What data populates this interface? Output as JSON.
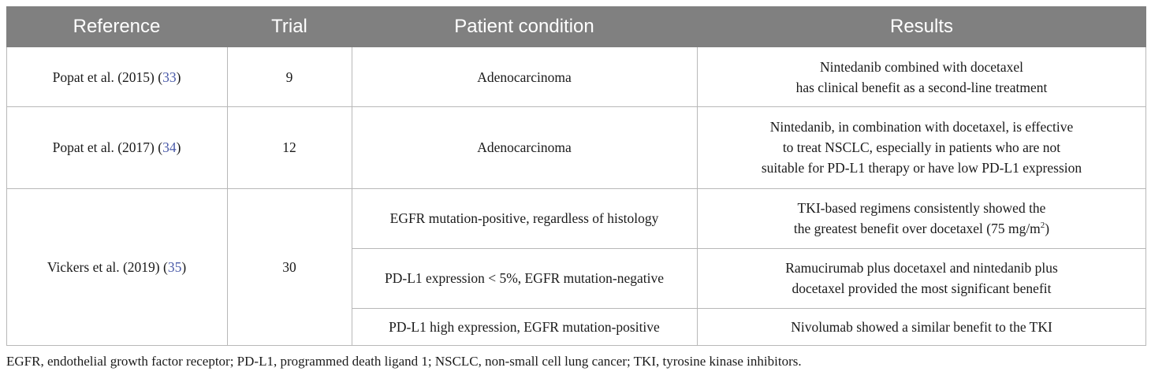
{
  "header": {
    "columns": [
      "Reference",
      "Trial",
      "Patient condition",
      "Results"
    ]
  },
  "table": {
    "rows": [
      {
        "reference": [
          "Popat et al. (2015) (",
          "33",
          ")"
        ],
        "trial": "9",
        "conditions": [
          {
            "condition": "Adenocarcinoma",
            "results": [
              [
                "Nintedanib combined with docetaxel"
              ],
              [
                "has clinical benefit as a second-line treatment"
              ]
            ]
          }
        ]
      },
      {
        "reference": [
          "Popat et al. (2017) (",
          "34",
          ")"
        ],
        "trial": "12",
        "conditions": [
          {
            "condition": "Adenocarcinoma",
            "results": [
              [
                "Nintedanib, in combination with docetaxel, is effective"
              ],
              [
                "to treat NSCLC, especially in patients who are not"
              ],
              [
                "suitable for PD-L1 therapy or have low PD-L1 expression"
              ]
            ]
          }
        ]
      },
      {
        "reference": [
          "Vickers et al. (2019) (",
          "35",
          ")"
        ],
        "trial": "30",
        "conditions": [
          {
            "condition": "EGFR mutation-positive, regardless of histology",
            "results": [
              [
                "TKI-based regimens consistently showed the"
              ],
              [
                "the greatest benefit over docetaxel (75 mg/m",
                "2",
                ")"
              ]
            ]
          },
          {
            "condition": "PD-L1 expression < 5%, EGFR mutation-negative",
            "results": [
              [
                "Ramucirumab plus docetaxel and nintedanib plus"
              ],
              [
                "docetaxel provided the most significant benefit"
              ]
            ]
          },
          {
            "condition": "PD-L1 high expression, EGFR mutation-positive",
            "results": [
              [
                "Nivolumab showed a similar benefit to the TKI"
              ]
            ]
          }
        ]
      }
    ]
  },
  "footnote": "EGFR, endothelial growth factor receptor; PD-L1, programmed death ligand 1; NSCLC, non-small cell lung cancer; TKI, tyrosine kinase inhibitors."
}
